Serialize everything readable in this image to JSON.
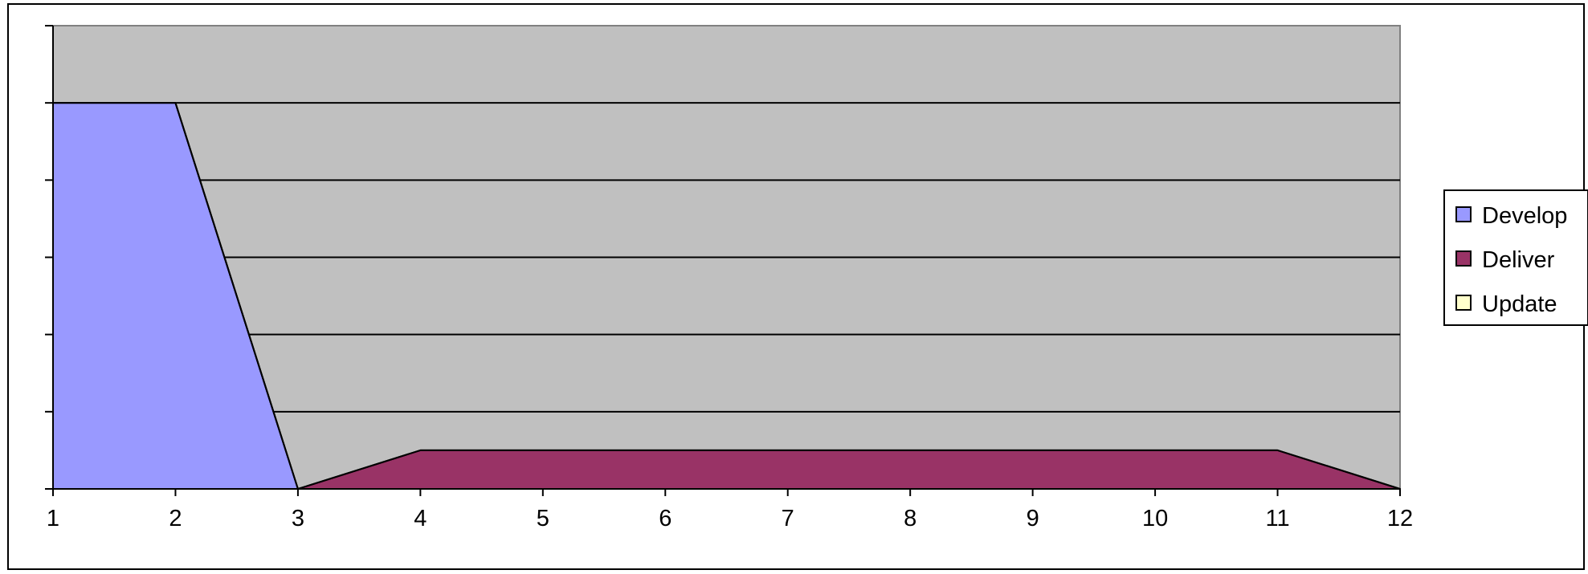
{
  "chart_data": {
    "type": "area",
    "stacked": true,
    "x": [
      1,
      2,
      3,
      4,
      5,
      6,
      7,
      8,
      9,
      10,
      11,
      12
    ],
    "xlabel": "",
    "ylabel": "",
    "ylim": [
      0,
      6
    ],
    "grid": true,
    "show_y_tick_labels": false,
    "legend_position": "right",
    "plot_background": "#c0c0c0",
    "series": [
      {
        "name": "Develop",
        "color": "#9999ff",
        "values": [
          5,
          5,
          0,
          0,
          0,
          0,
          0,
          0,
          0,
          0,
          0,
          0
        ]
      },
      {
        "name": "Deliver",
        "color": "#993366",
        "values": [
          0,
          0,
          0,
          0.5,
          0.5,
          0.5,
          0.5,
          0.5,
          0.5,
          0.5,
          0.5,
          0
        ]
      },
      {
        "name": "Update",
        "color": "#ffffcc",
        "values": [
          0,
          0,
          0,
          0,
          0,
          0,
          0,
          0,
          0,
          0,
          0,
          0
        ]
      }
    ]
  }
}
